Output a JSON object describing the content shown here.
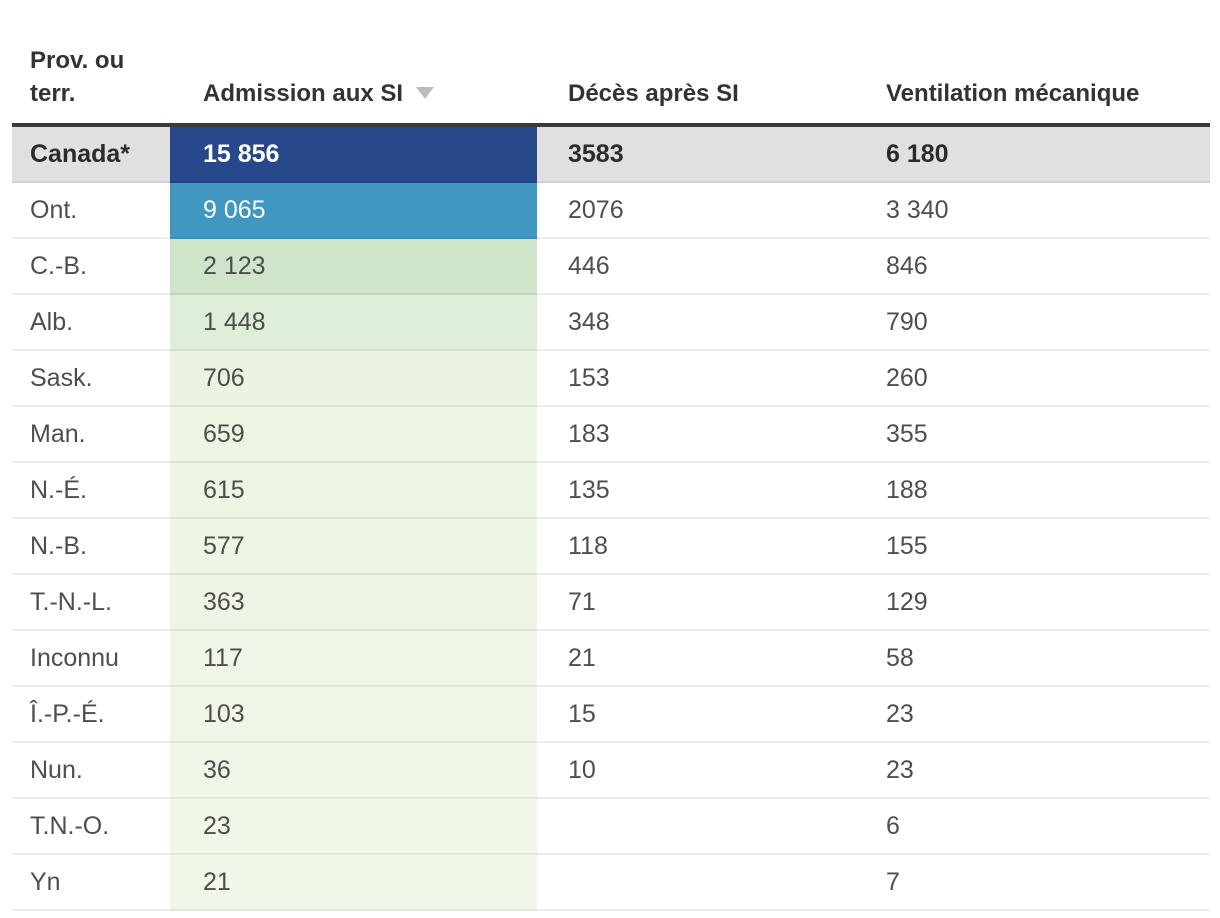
{
  "table": {
    "columns": [
      {
        "label": "Prov. ou terr."
      },
      {
        "label": "Admission aux SI",
        "sort": "desc",
        "sort_icon": "triangle-down",
        "sort_icon_color": "#bdbdbd"
      },
      {
        "label": "Décès après SI"
      },
      {
        "label": "Ventilation mécanique"
      }
    ],
    "header_border_color": "#3a3a3a",
    "rows": [
      {
        "label": "Canada*",
        "admission": "15 856",
        "deces": "3583",
        "ventilation": "6 180",
        "admission_bg": "#27498b",
        "admission_fg": "#ffffff",
        "row_bg": "#e0e0e0"
      },
      {
        "label": "Ont.",
        "admission": "9 065",
        "deces": "2076",
        "ventilation": "3 340",
        "admission_bg": "#4097c1",
        "admission_fg": "#ffffff"
      },
      {
        "label": "C.-B.",
        "admission": "2 123",
        "deces": "446",
        "ventilation": "846",
        "admission_bg": "#cfe5ca"
      },
      {
        "label": "Alb.",
        "admission": "1 448",
        "deces": "348",
        "ventilation": "790",
        "admission_bg": "#dfeed9"
      },
      {
        "label": "Sask.",
        "admission": "706",
        "deces": "153",
        "ventilation": "260",
        "admission_bg": "#ebf4e1"
      },
      {
        "label": "Man.",
        "admission": "659",
        "deces": "183",
        "ventilation": "355",
        "admission_bg": "#ecf4e2"
      },
      {
        "label": "N.-É.",
        "admission": "615",
        "deces": "135",
        "ventilation": "188",
        "admission_bg": "#ecf4e2"
      },
      {
        "label": "N.-B.",
        "admission": "577",
        "deces": "118",
        "ventilation": "155",
        "admission_bg": "#edf5e3"
      },
      {
        "label": "T.-N.-L.",
        "admission": "363",
        "deces": "71",
        "ventilation": "129",
        "admission_bg": "#eef5e5"
      },
      {
        "label": "Inconnu",
        "admission": "117",
        "deces": "21",
        "ventilation": "58",
        "admission_bg": "#f0f6e7"
      },
      {
        "label": "Î.-P.-É.",
        "admission": "103",
        "deces": "15",
        "ventilation": "23",
        "admission_bg": "#f0f6e7"
      },
      {
        "label": "Nun.",
        "admission": "36",
        "deces": "10",
        "ventilation": "23",
        "admission_bg": "#f0f7e8"
      },
      {
        "label": "T.N.-O.",
        "admission": "23",
        "deces": "",
        "ventilation": "6",
        "admission_bg": "#f1f7e8"
      },
      {
        "label": "Yn",
        "admission": "21",
        "deces": "",
        "ventilation": "7",
        "admission_bg": "#f1f7e8"
      }
    ]
  }
}
